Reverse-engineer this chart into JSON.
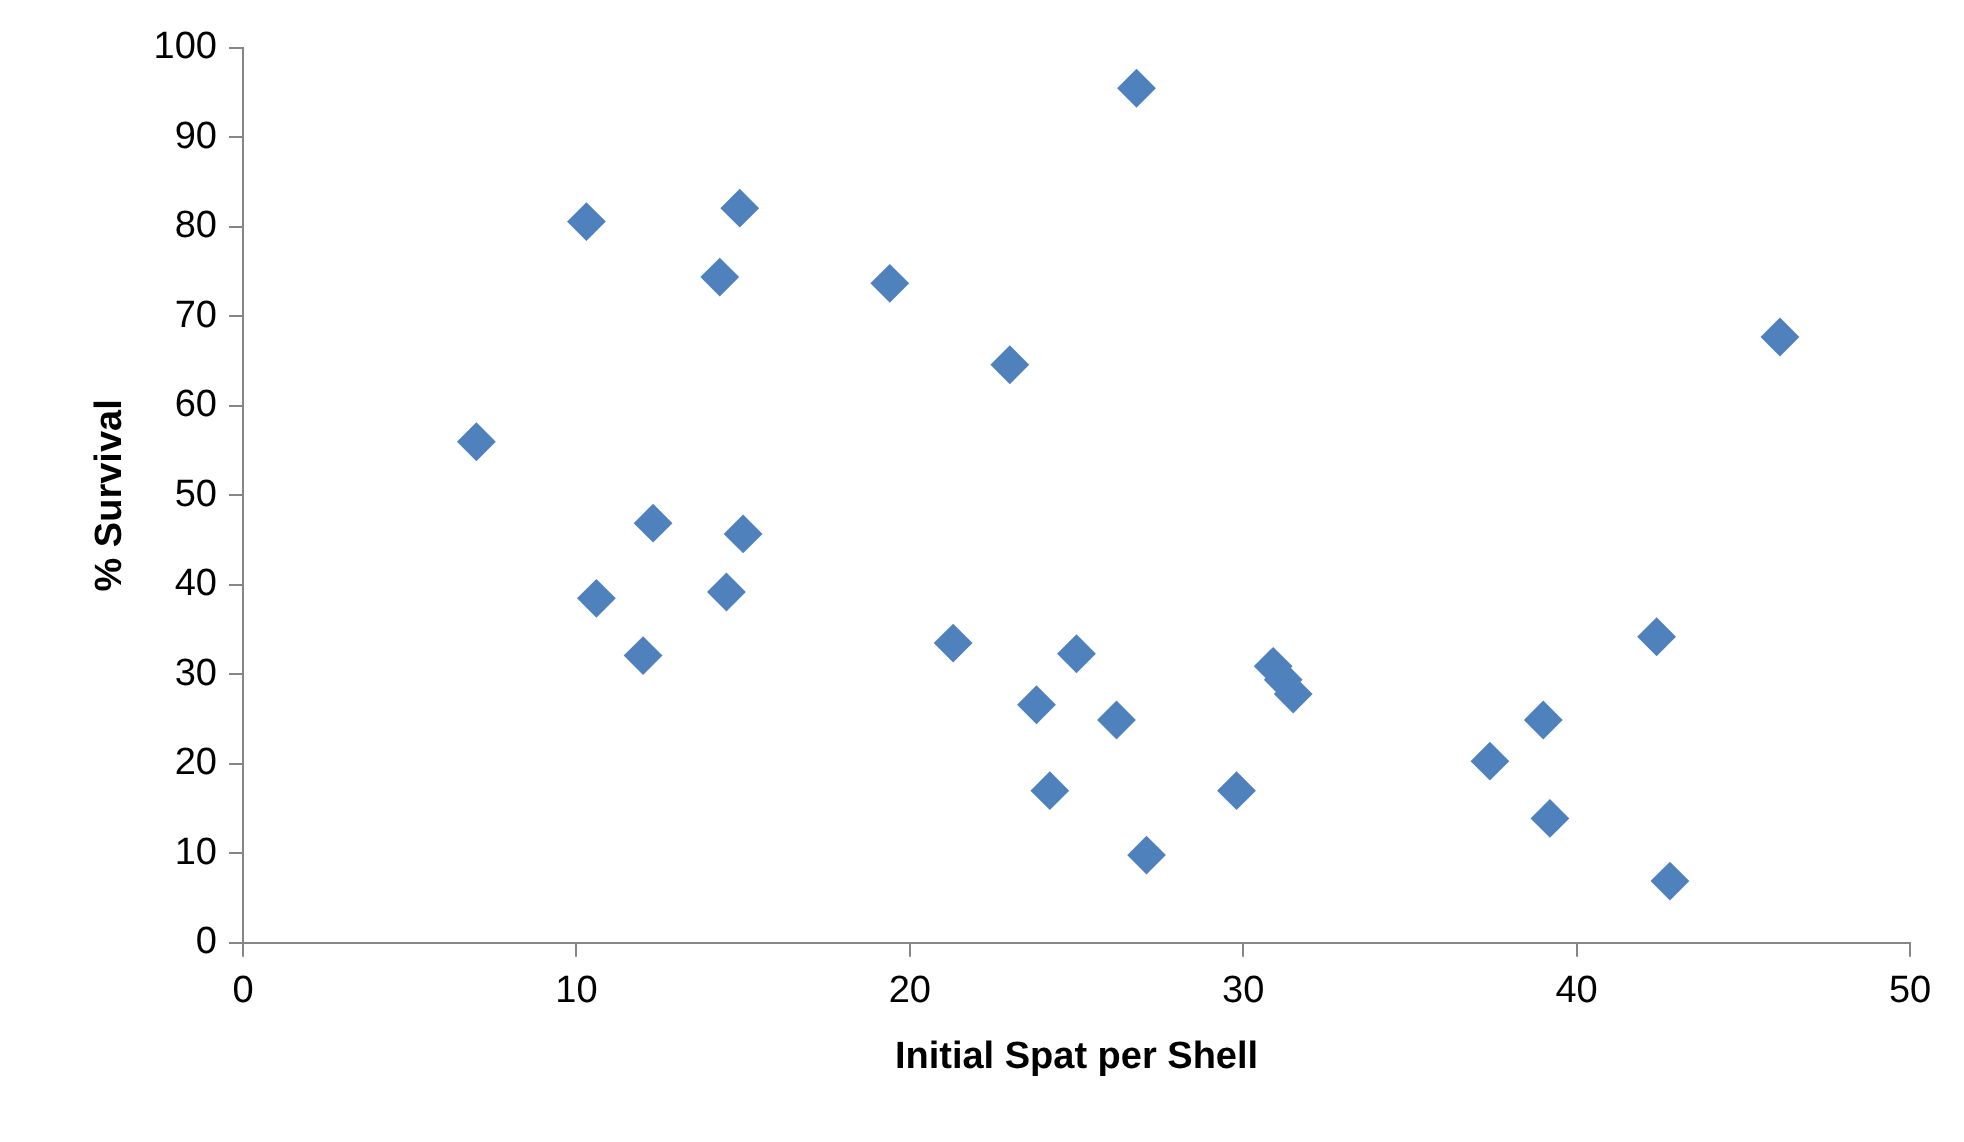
{
  "chart_data": {
    "type": "scatter",
    "xlabel": "Initial Spat per Shell",
    "ylabel": "% Survival",
    "marker": "diamond",
    "grid": false,
    "legend": false,
    "xlim": [
      0,
      50
    ],
    "xticks": [
      0,
      10,
      20,
      30,
      40,
      50
    ],
    "ylim": [
      0,
      100
    ],
    "yticks": [
      0,
      10,
      20,
      30,
      40,
      50,
      60,
      70,
      80,
      90,
      100
    ],
    "series": [
      {
        "color": "#4f81bd",
        "x": [
          7.0,
          10.3,
          10.6,
          12.0,
          12.3,
          14.3,
          14.5,
          14.9,
          15.0,
          19.4,
          21.3,
          23.0,
          23.8,
          24.2,
          25.0,
          26.2,
          26.8,
          27.1,
          29.8,
          30.9,
          31.2,
          31.5,
          37.4,
          39.0,
          39.2,
          42.4,
          42.8,
          46.1
        ],
        "values": [
          56,
          80.6,
          38.5,
          32.1,
          46.9,
          74.4,
          39.2,
          82.1,
          45.7,
          73.7,
          33.5,
          64.6,
          26.6,
          17.0,
          32.3,
          24.9,
          95.5,
          9.8,
          17.0,
          30.9,
          29.4,
          27.8,
          20.3,
          24.9,
          13.9,
          34.2,
          6.9,
          67.7
        ]
      }
    ]
  }
}
